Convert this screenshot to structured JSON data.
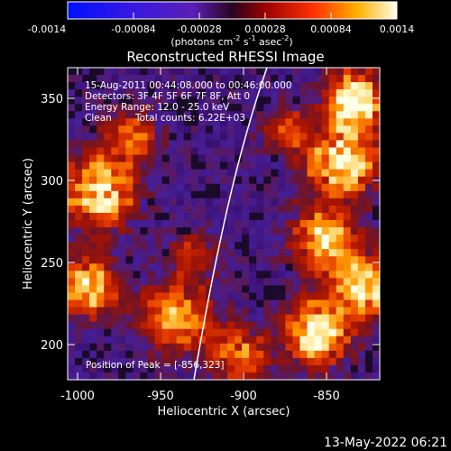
{
  "colorbar": {
    "ticks": [
      "-0.0014",
      "-0.00084",
      "-0.00028",
      "0.00028",
      "0.00084",
      "0.0014"
    ],
    "units_prefix": "(photons cm",
    "units_exp1": "-2",
    "units_mid": " s",
    "units_exp2": "-1",
    "units_mid2": " asec",
    "units_exp3": "-2",
    "units_suffix": ")"
  },
  "image": {
    "title": "Reconstructed RHESSI Image",
    "time_range": "15-Aug-2011 00:44:08.000 to 00:46:00.000",
    "detectors": "Detectors: 3F 4F 5F 6F 7F 8F, Att 0",
    "energy_range": "Energy Range: 12.0 - 25.0 keV",
    "algorithm": "Clean",
    "total_counts": "Total counts: 6.22E+03",
    "peak": "Position of Peak = [-856,323]"
  },
  "axes": {
    "xlabel": "Heliocentric X (arcsec)",
    "ylabel": "Heliocentric Y (arcsec)",
    "x_ticks": [
      "-1000",
      "-950",
      "-900",
      "-850"
    ],
    "y_ticks": [
      "200",
      "250",
      "300",
      "350"
    ],
    "x_range": [
      -1006,
      -818
    ],
    "y_range": [
      177,
      371
    ]
  },
  "footer": {
    "date": "13-May-2022 06:21"
  },
  "colors": {
    "background": "#000000",
    "foreground": "#ffffff"
  }
}
